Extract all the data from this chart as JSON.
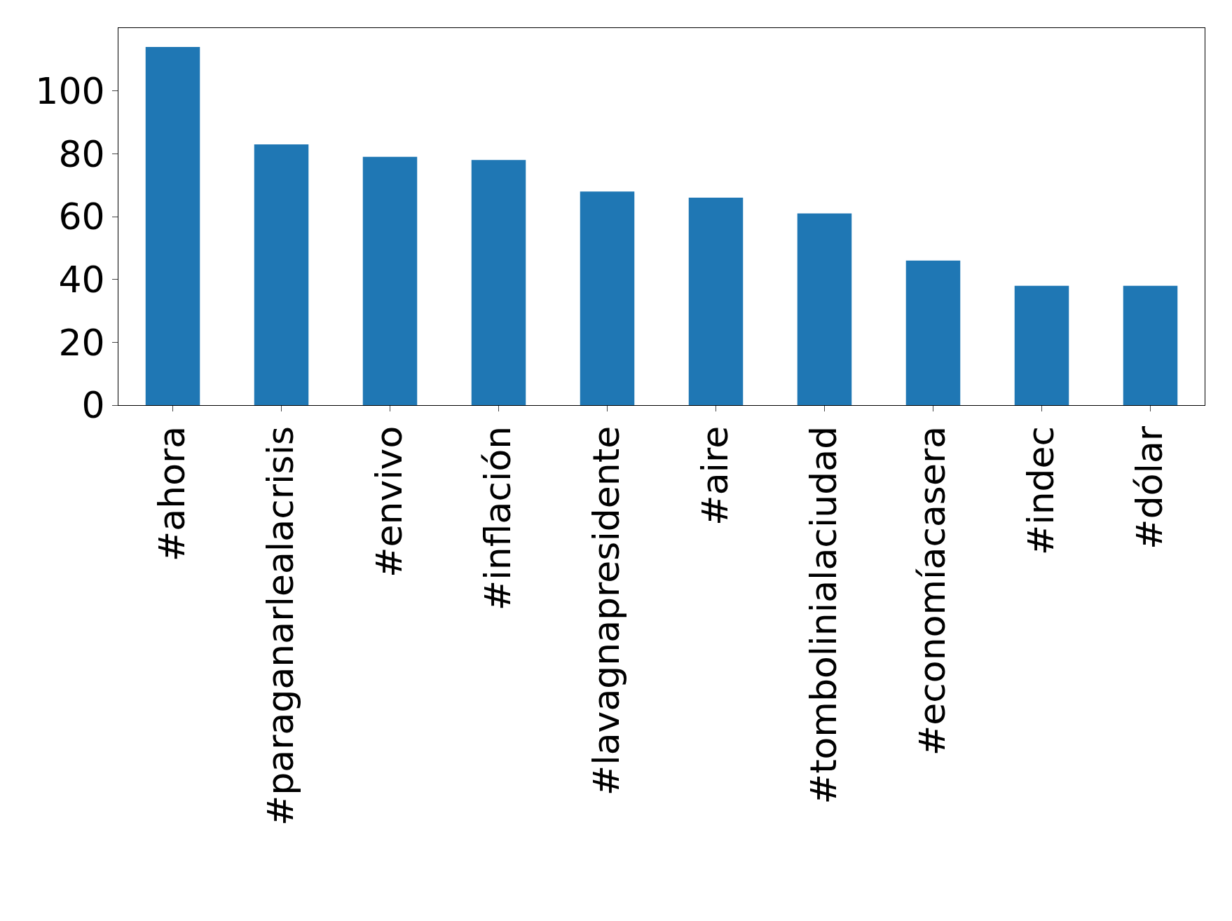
{
  "chart_data": {
    "type": "bar",
    "categories": [
      "#ahora",
      "#paraganarlealacrisis",
      "#envivo",
      "#inflación",
      "#lavagnapresidente",
      "#aire",
      "#tombolinialaciudad",
      "#economíacasera",
      "#indec",
      "#dólar"
    ],
    "values": [
      114,
      83,
      79,
      78,
      68,
      66,
      61,
      46,
      38,
      38
    ],
    "color": "#1f77b4",
    "ylim": [
      0,
      120
    ],
    "yticks": [
      0,
      20,
      40,
      60,
      80,
      100
    ]
  }
}
